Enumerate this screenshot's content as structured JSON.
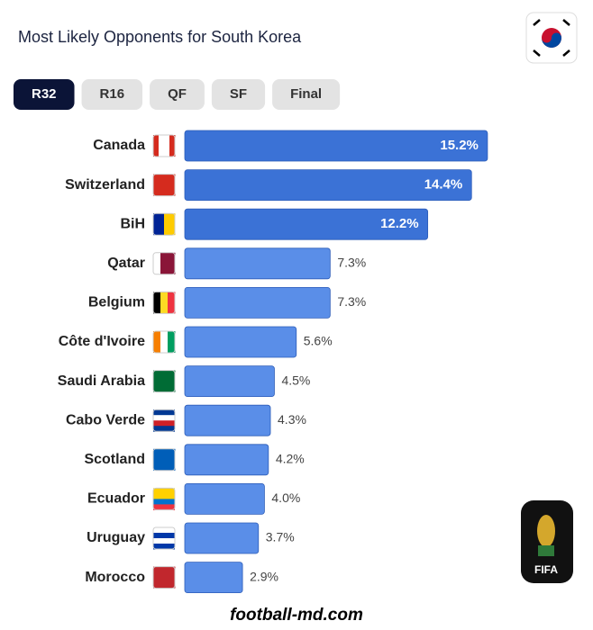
{
  "chart_data": {
    "type": "hbar",
    "title": "Most Likely Opponents for South Korea",
    "tabs": [
      "R32",
      "R16",
      "QF",
      "SF",
      "Final"
    ],
    "active_tab": 0,
    "categories": [
      "Canada",
      "Switzerland",
      "BiH",
      "Qatar",
      "Belgium",
      "Côte d'Ivoire",
      "Saudi Arabia",
      "Cabo Verde",
      "Scotland",
      "Ecuador",
      "Uruguay",
      "Morocco"
    ],
    "values": [
      15.2,
      14.4,
      12.2,
      7.3,
      7.3,
      5.6,
      4.5,
      4.3,
      4.2,
      4.0,
      3.7,
      2.9
    ],
    "value_labels": [
      "15.2%",
      "14.4%",
      "12.2%",
      "7.3%",
      "7.3%",
      "5.6%",
      "4.5%",
      "4.3%",
      "4.2%",
      "4.0%",
      "3.7%",
      "2.9%"
    ],
    "colors": [
      "#3b72d6",
      "#3b72d6",
      "#3b72d6",
      "#5a8ee8",
      "#5a8ee8",
      "#5a8ee8",
      "#5a8ee8",
      "#5a8ee8",
      "#5a8ee8",
      "#5a8ee8",
      "#5a8ee8",
      "#5a8ee8"
    ],
    "badge": "FIFA",
    "footer": "football-md.com"
  }
}
